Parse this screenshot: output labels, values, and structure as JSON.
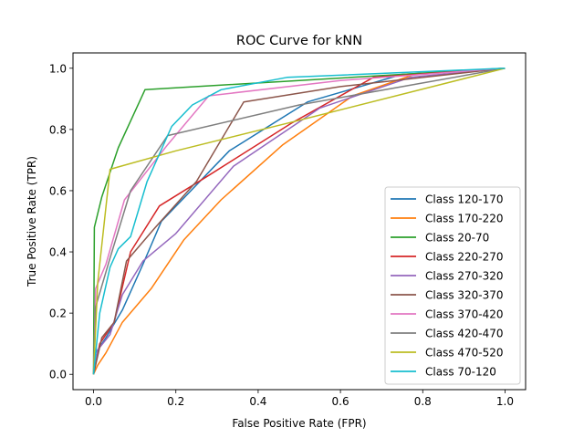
{
  "chart_data": {
    "type": "line",
    "title": "ROC Curve for kNN",
    "xlabel": "False Positive Rate (FPR)",
    "ylabel": "True Positive Rate (TPR)",
    "xlim": [
      -0.05,
      1.05
    ],
    "ylim": [
      -0.05,
      1.05
    ],
    "xticks": [
      "0.0",
      "0.2",
      "0.4",
      "0.6",
      "0.8",
      "1.0"
    ],
    "yticks": [
      "0.0",
      "0.2",
      "0.4",
      "0.6",
      "0.8",
      "1.0"
    ],
    "grid": false,
    "legend_position": "lower right",
    "series": [
      {
        "name": "Class 120-170",
        "color": "#1f77b4",
        "x": [
          0,
          0.005,
          0.03,
          0.07,
          0.12,
          0.165,
          0.33,
          0.52,
          0.75,
          1.0
        ],
        "y": [
          0,
          0.07,
          0.12,
          0.21,
          0.36,
          0.5,
          0.73,
          0.89,
          0.98,
          1.0
        ]
      },
      {
        "name": "Class 170-220",
        "color": "#ff7f0e",
        "x": [
          0,
          0.01,
          0.03,
          0.07,
          0.14,
          0.22,
          0.31,
          0.46,
          0.63,
          0.78,
          1.0
        ],
        "y": [
          0,
          0.03,
          0.07,
          0.17,
          0.28,
          0.44,
          0.57,
          0.75,
          0.91,
          0.98,
          1.0
        ]
      },
      {
        "name": "Class 20-70",
        "color": "#2ca02c",
        "x": [
          0,
          0.002,
          0.02,
          0.06,
          0.125,
          0.5,
          1.0
        ],
        "y": [
          0,
          0.48,
          0.58,
          0.74,
          0.93,
          0.96,
          1.0
        ]
      },
      {
        "name": "Class 220-270",
        "color": "#d62728",
        "x": [
          0,
          0.015,
          0.05,
          0.09,
          0.16,
          0.28,
          0.48,
          0.68,
          1.0
        ],
        "y": [
          0,
          0.1,
          0.17,
          0.4,
          0.55,
          0.65,
          0.82,
          0.97,
          1.0
        ]
      },
      {
        "name": "Class 270-320",
        "color": "#9467bd",
        "x": [
          0,
          0.01,
          0.04,
          0.07,
          0.12,
          0.2,
          0.34,
          0.55,
          0.77,
          1.0
        ],
        "y": [
          0,
          0.08,
          0.13,
          0.26,
          0.37,
          0.46,
          0.68,
          0.87,
          0.97,
          1.0
        ]
      },
      {
        "name": "Class 320-370",
        "color": "#8c564b",
        "x": [
          0,
          0.02,
          0.05,
          0.08,
          0.15,
          0.25,
          0.365,
          0.6,
          1.0
        ],
        "y": [
          0,
          0.12,
          0.17,
          0.37,
          0.48,
          0.63,
          0.89,
          0.94,
          1.0
        ]
      },
      {
        "name": "Class 370-420",
        "color": "#e377c2",
        "x": [
          0,
          0.005,
          0.03,
          0.075,
          0.18,
          0.28,
          0.6,
          1.0
        ],
        "y": [
          0,
          0.28,
          0.36,
          0.57,
          0.75,
          0.91,
          0.96,
          1.0
        ]
      },
      {
        "name": "Class 420-470",
        "color": "#7f7f7f",
        "x": [
          0,
          0.005,
          0.04,
          0.09,
          0.18,
          0.5,
          1.0
        ],
        "y": [
          0,
          0.22,
          0.38,
          0.6,
          0.78,
          0.88,
          1.0
        ]
      },
      {
        "name": "Class 470-520",
        "color": "#bcbd22",
        "x": [
          0,
          0.01,
          0.04,
          0.2,
          0.5,
          1.0
        ],
        "y": [
          0,
          0.3,
          0.67,
          0.73,
          0.83,
          1.0
        ]
      },
      {
        "name": "Class 70-120",
        "color": "#17becf",
        "x": [
          0,
          0.015,
          0.04,
          0.06,
          0.09,
          0.13,
          0.19,
          0.24,
          0.31,
          0.47,
          1.0
        ],
        "y": [
          0,
          0.2,
          0.35,
          0.41,
          0.45,
          0.63,
          0.81,
          0.88,
          0.93,
          0.97,
          1.0
        ]
      }
    ]
  }
}
